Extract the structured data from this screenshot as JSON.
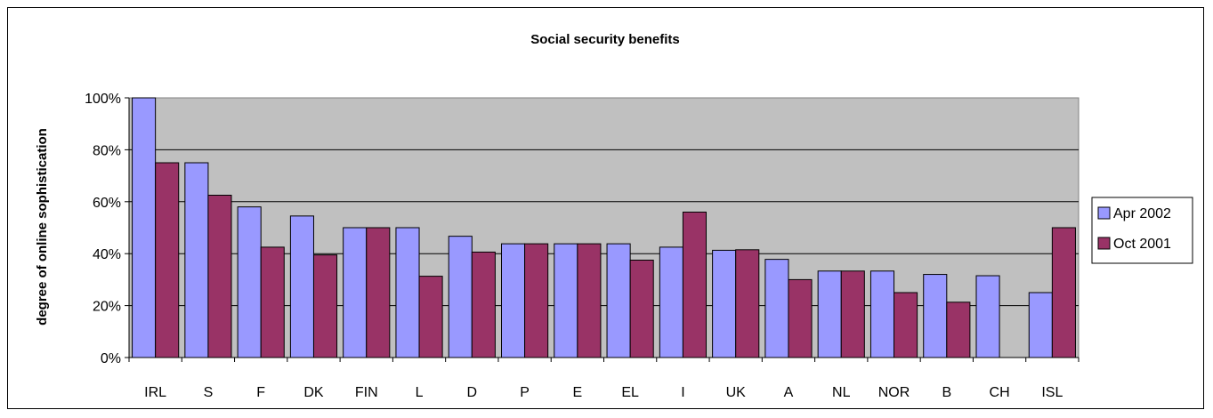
{
  "chart_data": {
    "type": "bar",
    "title": "Social security benefits",
    "xlabel": "",
    "ylabel": "degree of online sophistication",
    "ylim": [
      0,
      100
    ],
    "yticks": [
      "0%",
      "20%",
      "40%",
      "60%",
      "80%",
      "100%"
    ],
    "grid": true,
    "legend_position": "right",
    "categories": [
      "IRL",
      "S",
      "F",
      "DK",
      "FIN",
      "L",
      "D",
      "P",
      "E",
      "EL",
      "I",
      "UK",
      "A",
      "NL",
      "NOR",
      "B",
      "CH",
      "ISL"
    ],
    "series": [
      {
        "name": "Apr 2002",
        "color": "#9999ff",
        "values": [
          100,
          75,
          58,
          54.5,
          50,
          50,
          46.7,
          43.8,
          43.8,
          43.8,
          42.5,
          41.3,
          37.8,
          33.3,
          33.3,
          32,
          31.5,
          25
        ]
      },
      {
        "name": "Oct 2001",
        "color": "#993366",
        "values": [
          75,
          62.5,
          42.5,
          39.5,
          50,
          31.3,
          40.6,
          43.8,
          43.8,
          37.5,
          56,
          41.5,
          30,
          33.3,
          25,
          21.3,
          null,
          50
        ]
      }
    ]
  }
}
